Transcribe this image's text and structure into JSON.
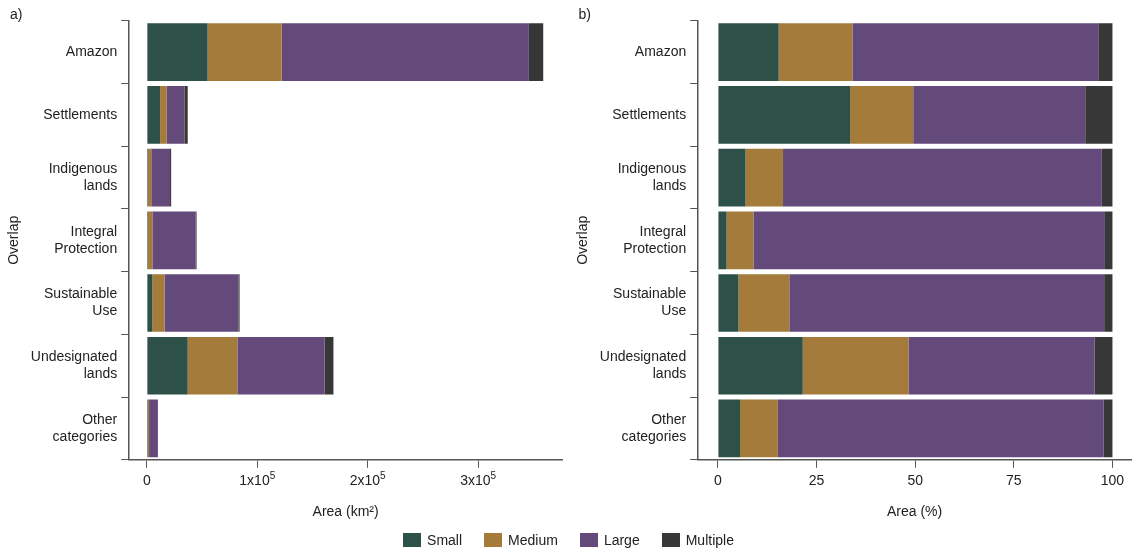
{
  "chart_data": [
    {
      "type": "bar",
      "title": "a)",
      "orientation": "horizontal",
      "stacked": true,
      "xlabel": "Area (km²)",
      "ylabel": "Overlap",
      "legend": "bottom",
      "categories": [
        "Amazon",
        "Settlements",
        "Indigenous lands",
        "Integral Protection",
        "Sustainable Use",
        "Undesignated lands",
        "Other categories"
      ],
      "series": [
        {
          "name": "Small",
          "color": "#2d5049",
          "values": [
            55000,
            12000,
            1000,
            1000,
            5000,
            37000,
            1000
          ]
        },
        {
          "name": "Medium",
          "color": "#a47b3a",
          "values": [
            67000,
            6000,
            3000,
            4000,
            11000,
            45000,
            1000
          ]
        },
        {
          "name": "Large",
          "color": "#634a7b",
          "values": [
            224000,
            16000,
            17000,
            39000,
            67000,
            79000,
            8000
          ]
        },
        {
          "name": "Multiple",
          "color": "#373737",
          "values": [
            13000,
            3000,
            1000,
            1000,
            1000,
            8000,
            0
          ]
        }
      ],
      "xlim": [
        -16000,
        376000
      ],
      "xticks": [
        0,
        {
          "value": 100000,
          "label": "1x10$^{5}$"
        },
        {
          "value": 200000,
          "label": "2x10$^{5}$"
        },
        {
          "value": 300000,
          "label": "3x10$^{5}$"
        }
      ]
    },
    {
      "type": "bar",
      "title": "b)",
      "orientation": "horizontal",
      "stacked": true,
      "xlabel": "Area (%)",
      "ylabel": "Overlap",
      "categories": [
        "Amazon",
        "Settlements",
        "Indigenous lands",
        "Integral Protection",
        "Sustainable Use",
        "Undesignated lands",
        "Other categories"
      ],
      "series": [
        {
          "color": "#2d5049",
          "values": [
            15.4,
            33.5,
            7.0,
            2.2,
            5.2,
            21.5,
            5.6
          ]
        },
        {
          "color": "#a47b3a",
          "values": [
            18.7,
            16.0,
            9.5,
            6.8,
            12.9,
            26.8,
            9.6
          ]
        },
        {
          "color": "#634a7b",
          "values": [
            62.3,
            43.6,
            80.8,
            89.1,
            79.8,
            47.2,
            82.6
          ]
        },
        {
          "color": "#373737",
          "values": [
            3.6,
            6.9,
            2.7,
            1.9,
            2.1,
            4.5,
            2.2
          ]
        }
      ],
      "xlim": [
        -5,
        104.7
      ],
      "xticks": [
        0,
        25,
        50,
        75,
        100
      ]
    }
  ]
}
